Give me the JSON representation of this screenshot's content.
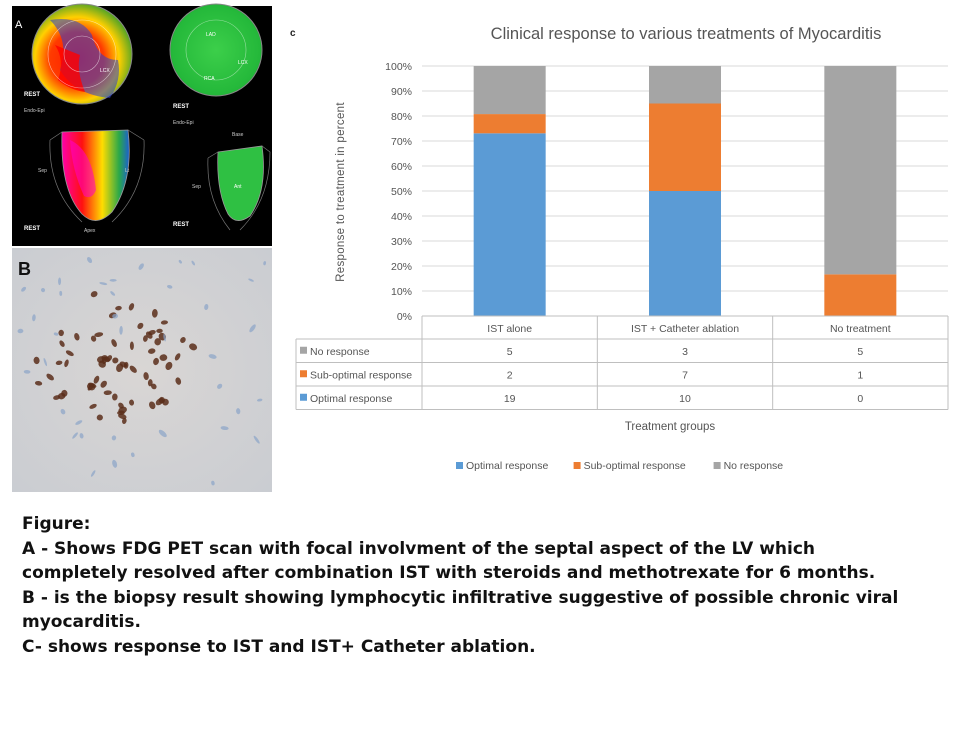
{
  "panels": {
    "a": {
      "letter": "A",
      "labels": {
        "rest": "REST",
        "endo_epi": "Endo-Epi",
        "sep": "Sep",
        "lat": "Lt",
        "apex": "Apex",
        "base": "Base",
        "lcx": "LCX",
        "lad": "LAD",
        "rca": "RCA",
        "ant": "Ant"
      }
    },
    "b": {
      "letter": "B"
    },
    "c": {
      "letter": "c"
    }
  },
  "chart_data": {
    "type": "bar",
    "stacked": true,
    "normalized": true,
    "title": "Clinical response to various treatments of Myocarditis",
    "xlabel": "Treatment groups",
    "ylabel": "Response to treatment in percent",
    "ylim": [
      0,
      100
    ],
    "yticks": [
      "0%",
      "10%",
      "20%",
      "30%",
      "40%",
      "50%",
      "60%",
      "70%",
      "80%",
      "90%",
      "100%"
    ],
    "grid": true,
    "legend_position": "bottom",
    "categories": [
      "IST alone",
      "IST + Catheter ablation",
      "No treatment"
    ],
    "series": [
      {
        "name": "Optimal response",
        "values": [
          19,
          10,
          0
        ],
        "color": "#5b9bd5"
      },
      {
        "name": "Sub-optimal response",
        "values": [
          2,
          7,
          1
        ],
        "color": "#ed7d31"
      },
      {
        "name": "No response",
        "values": [
          5,
          3,
          5
        ],
        "color": "#a5a5a5"
      }
    ],
    "data_table_order": [
      "No response",
      "Sub-optimal response",
      "Optimal response"
    ]
  },
  "caption": {
    "lines": [
      "Figure:",
      "A - Shows FDG PET scan with focal involvment of the septal aspect of the LV which",
      "completely resolved after combination IST with steroids and methotrexate for 6 months.",
      "B - is the biopsy result showing lymphocytic infiltrative suggestive of possible chronic viral",
      "myocarditis.",
      "C- shows response to IST and IST+ Catheter ablation."
    ]
  }
}
